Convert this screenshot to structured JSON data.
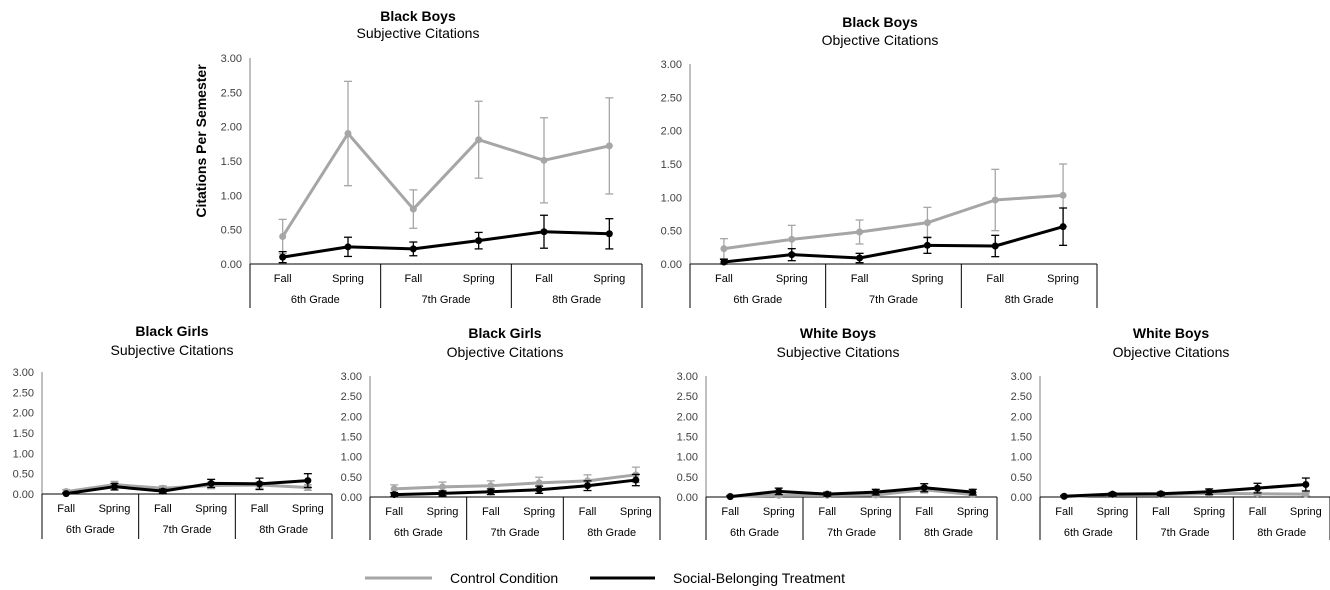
{
  "chart_data": [
    {
      "type": "line",
      "title": "Black Boys",
      "subtitle": "Subjective Citations",
      "ylabel": "Citations Per Semester",
      "ylim": [
        0,
        3
      ],
      "yticks": [
        "0.00",
        "0.50",
        "1.00",
        "1.50",
        "2.00",
        "2.50",
        "3.00"
      ],
      "categories": [
        "Fall",
        "Spring",
        "Fall",
        "Spring",
        "Fall",
        "Spring"
      ],
      "groups": [
        "6th Grade",
        "7th Grade",
        "8th Grade"
      ],
      "series": [
        {
          "name": "Control Condition",
          "color": "#a6a6a6",
          "values": [
            0.4,
            1.9,
            0.8,
            1.81,
            1.51,
            1.72
          ],
          "err": [
            0.25,
            0.76,
            0.28,
            0.56,
            0.62,
            0.7
          ]
        },
        {
          "name": "Social-Belonging Treatment",
          "color": "#000000",
          "values": [
            0.1,
            0.25,
            0.22,
            0.34,
            0.47,
            0.44
          ],
          "err": [
            0.08,
            0.14,
            0.1,
            0.12,
            0.24,
            0.22
          ]
        }
      ]
    },
    {
      "type": "line",
      "title": "Black Boys",
      "subtitle": "Objective Citations",
      "ylim": [
        0,
        3
      ],
      "yticks": [
        "0.00",
        "0.50",
        "1.00",
        "1.50",
        "2.00",
        "2.50",
        "3.00"
      ],
      "categories": [
        "Fall",
        "Spring",
        "Fall",
        "Spring",
        "Fall",
        "Spring"
      ],
      "groups": [
        "6th Grade",
        "7th Grade",
        "8th Grade"
      ],
      "series": [
        {
          "name": "Control Condition",
          "color": "#a6a6a6",
          "values": [
            0.23,
            0.37,
            0.48,
            0.62,
            0.96,
            1.03
          ],
          "err": [
            0.15,
            0.21,
            0.18,
            0.23,
            0.46,
            0.47
          ]
        },
        {
          "name": "Social-Belonging Treatment",
          "color": "#000000",
          "values": [
            0.03,
            0.14,
            0.09,
            0.28,
            0.27,
            0.56
          ],
          "err": [
            0.04,
            0.09,
            0.07,
            0.12,
            0.16,
            0.28
          ]
        }
      ]
    },
    {
      "type": "line",
      "title": "Black Girls",
      "subtitle": "Subjective Citations",
      "ylim": [
        0,
        3
      ],
      "yticks": [
        "0.00",
        "0.50",
        "1.00",
        "1.50",
        "2.00",
        "2.50",
        "3.00"
      ],
      "categories": [
        "Fall",
        "Spring",
        "Fall",
        "Spring",
        "Fall",
        "Spring"
      ],
      "groups": [
        "6th Grade",
        "7th Grade",
        "8th Grade"
      ],
      "series": [
        {
          "name": "Control Condition",
          "color": "#a6a6a6",
          "values": [
            0.06,
            0.23,
            0.14,
            0.21,
            0.22,
            0.16
          ],
          "err": [
            0.05,
            0.08,
            0.06,
            0.08,
            0.08,
            0.07
          ]
        },
        {
          "name": "Social-Belonging Treatment",
          "color": "#000000",
          "values": [
            0.01,
            0.18,
            0.07,
            0.26,
            0.25,
            0.33
          ],
          "err": [
            0.02,
            0.08,
            0.05,
            0.1,
            0.14,
            0.17
          ]
        }
      ]
    },
    {
      "type": "line",
      "title": "Black Girls",
      "subtitle": "Objective Citations",
      "ylim": [
        0,
        3
      ],
      "yticks": [
        "0.00",
        "0.50",
        "1.00",
        "1.50",
        "2.00",
        "2.50",
        "3.00"
      ],
      "categories": [
        "Fall",
        "Spring",
        "Fall",
        "Spring",
        "Fall",
        "Spring"
      ],
      "groups": [
        "6th Grade",
        "7th Grade",
        "8th Grade"
      ],
      "series": [
        {
          "name": "Control Condition",
          "color": "#a6a6a6",
          "values": [
            0.2,
            0.25,
            0.28,
            0.35,
            0.4,
            0.55
          ],
          "err": [
            0.1,
            0.12,
            0.12,
            0.14,
            0.15,
            0.19
          ]
        },
        {
          "name": "Social-Belonging Treatment",
          "color": "#000000",
          "values": [
            0.06,
            0.09,
            0.13,
            0.18,
            0.28,
            0.42
          ],
          "err": [
            0.05,
            0.06,
            0.07,
            0.09,
            0.12,
            0.14
          ]
        }
      ]
    },
    {
      "type": "line",
      "title": "White Boys",
      "subtitle": "Subjective Citations",
      "ylim": [
        0,
        3
      ],
      "yticks": [
        "0.00",
        "0.50",
        "1.00",
        "1.50",
        "2.00",
        "2.50",
        "3.00"
      ],
      "categories": [
        "Fall",
        "Spring",
        "Fall",
        "Spring",
        "Fall",
        "Spring"
      ],
      "groups": [
        "6th Grade",
        "7th Grade",
        "8th Grade"
      ],
      "series": [
        {
          "name": "Control Condition",
          "color": "#a6a6a6",
          "values": [
            0.02,
            0.04,
            0.04,
            0.05,
            0.18,
            0.06
          ],
          "err": [
            0.02,
            0.03,
            0.03,
            0.04,
            0.08,
            0.04
          ]
        },
        {
          "name": "Social-Belonging Treatment",
          "color": "#000000",
          "values": [
            0.01,
            0.14,
            0.07,
            0.12,
            0.23,
            0.12
          ],
          "err": [
            0.02,
            0.08,
            0.05,
            0.07,
            0.1,
            0.07
          ]
        }
      ]
    },
    {
      "type": "line",
      "title": "White Boys",
      "subtitle": "Objective Citations",
      "ylim": [
        0,
        3
      ],
      "yticks": [
        "0.00",
        "0.50",
        "1.00",
        "1.50",
        "2.00",
        "2.50",
        "3.00"
      ],
      "categories": [
        "Fall",
        "Spring",
        "Fall",
        "Spring",
        "Fall",
        "Spring"
      ],
      "groups": [
        "6th Grade",
        "7th Grade",
        "8th Grade"
      ],
      "series": [
        {
          "name": "Control Condition",
          "color": "#a6a6a6",
          "values": [
            0.01,
            0.06,
            0.06,
            0.09,
            0.08,
            0.07
          ],
          "err": [
            0.02,
            0.03,
            0.03,
            0.04,
            0.04,
            0.04
          ]
        },
        {
          "name": "Social-Belonging Treatment",
          "color": "#000000",
          "values": [
            0.02,
            0.07,
            0.08,
            0.13,
            0.22,
            0.31
          ],
          "err": [
            0.02,
            0.04,
            0.04,
            0.07,
            0.12,
            0.16
          ]
        }
      ]
    }
  ],
  "legend": {
    "items": [
      {
        "label": "Control Condition",
        "color": "#a6a6a6"
      },
      {
        "label": "Social-Belonging Treatment",
        "color": "#000000"
      }
    ]
  }
}
